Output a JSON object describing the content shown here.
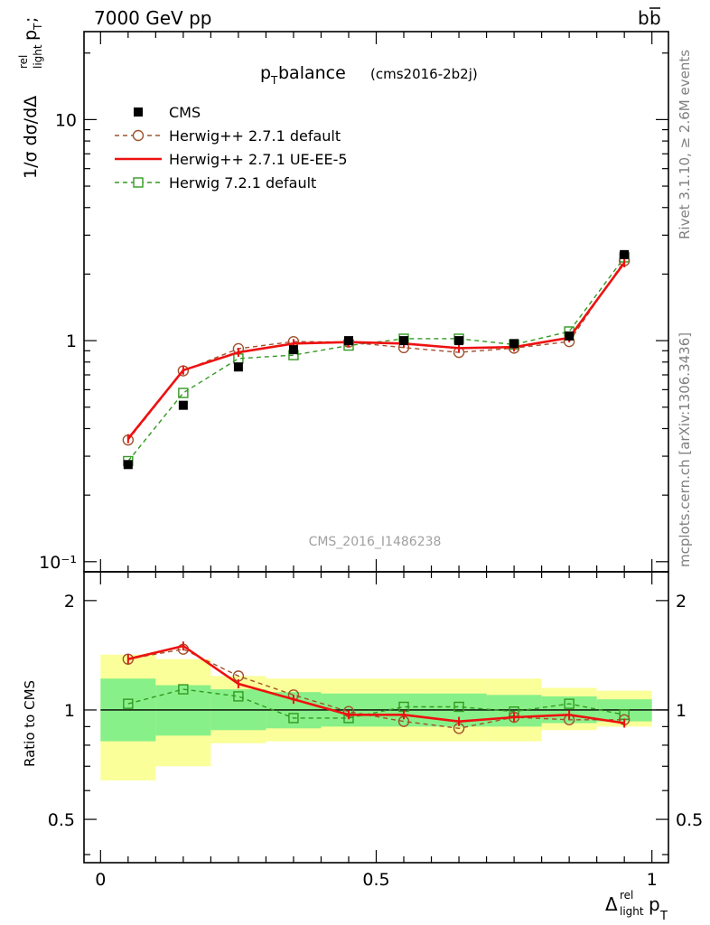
{
  "header": {
    "energy_label": "7000 GeV pp",
    "process_label": "b",
    "process_label_bar": "b"
  },
  "side_labels": {
    "rivet": "Rivet 3.1.10, ≥ 2.6M events",
    "mcplots": "mcplots.cern.ch [arXiv:1306.3436]"
  },
  "plot_title": {
    "main": "p",
    "main_sub": "T",
    "main_rest": " balance",
    "tag": "(cms2016-2b2j)"
  },
  "watermark": "CMS_2016_I1486238",
  "axis_labels": {
    "y_main_parts": [
      "1/σ dσ/dΔ",
      "rel",
      "light",
      "p",
      "T",
      " ;"
    ],
    "y_ratio": "Ratio to CMS",
    "x_parts": [
      "Δ",
      "rel",
      "light",
      "p",
      "T"
    ]
  },
  "colors": {
    "data": "#000000",
    "herwigpp_default": "#a0522d",
    "herwigpp_ueee5": "#ee1111",
    "herwig7_default": "#339922",
    "band_inner": "#88f088",
    "band_outer": "#fbff99"
  },
  "chart_data": {
    "type": "line",
    "x": [
      0.05,
      0.15,
      0.25,
      0.35,
      0.45,
      0.55,
      0.65,
      0.75,
      0.85,
      0.95
    ],
    "bin_edges": [
      0.0,
      0.1,
      0.2,
      0.3,
      0.4,
      0.5,
      0.6,
      0.7,
      0.8,
      0.9,
      1.0
    ],
    "xlim": [
      -0.03,
      1.03
    ],
    "ylim_main": [
      0.09,
      25
    ],
    "yscale_main": "log",
    "main_ticks": [
      {
        "value": 10,
        "label": "10"
      },
      {
        "value": 1,
        "label": "1"
      },
      {
        "value": 0.1,
        "label": "10⁻¹"
      }
    ],
    "ylim_ratio": [
      0.38,
      2.4
    ],
    "yscale_ratio": "log",
    "ratio_ticks": [
      {
        "value": 2,
        "label": "2"
      },
      {
        "value": 1,
        "label": "1"
      },
      {
        "value": 0.5,
        "label": "0.5"
      }
    ],
    "x_ticks": [
      {
        "value": 0,
        "label": "0"
      },
      {
        "value": 0.5,
        "label": "0.5"
      },
      {
        "value": 1,
        "label": "1"
      }
    ],
    "legend_position": "top-left",
    "series": [
      {
        "key": "cms",
        "name": "CMS",
        "style": "data",
        "marker": "square-filled",
        "values": [
          0.275,
          0.51,
          0.76,
          0.91,
          1.0,
          1.0,
          1.0,
          0.97,
          1.05,
          2.45
        ]
      },
      {
        "key": "hpp_def",
        "name": "Herwig++ 2.7.1 default",
        "style": "dashed",
        "marker": "circle-open",
        "values": [
          0.355,
          0.73,
          0.92,
          0.99,
          0.985,
          0.93,
          0.885,
          0.925,
          0.99,
          2.3
        ]
      },
      {
        "key": "hpp_ue",
        "name": "Herwig++ 2.7.1 UE-EE-5",
        "style": "solid",
        "marker": "none",
        "values": [
          0.36,
          0.735,
          0.885,
          0.97,
          0.985,
          0.97,
          0.925,
          0.935,
          1.03,
          2.25
        ]
      },
      {
        "key": "h7_def",
        "name": "Herwig 7.2.1 default",
        "style": "dashed",
        "marker": "square-open",
        "values": [
          0.285,
          0.58,
          0.83,
          0.86,
          0.95,
          1.02,
          1.02,
          0.96,
          1.1,
          2.38
        ]
      }
    ],
    "ratio_series": [
      {
        "key": "hpp_def",
        "values": [
          1.38,
          1.47,
          1.24,
          1.1,
          0.99,
          0.93,
          0.89,
          0.955,
          0.94,
          0.94
        ]
      },
      {
        "key": "hpp_ue",
        "values": [
          1.38,
          1.5,
          1.18,
          1.07,
          0.97,
          0.97,
          0.93,
          0.955,
          0.97,
          0.92
        ]
      },
      {
        "key": "h7_def",
        "values": [
          1.04,
          1.14,
          1.09,
          0.95,
          0.95,
          1.02,
          1.02,
          0.99,
          1.04,
          0.97
        ]
      }
    ],
    "bands": {
      "inner": [
        [
          0.82,
          1.22
        ],
        [
          0.85,
          1.17
        ],
        [
          0.88,
          1.14
        ],
        [
          0.89,
          1.12
        ],
        [
          0.9,
          1.11
        ],
        [
          0.9,
          1.11
        ],
        [
          0.9,
          1.11
        ],
        [
          0.9,
          1.1
        ],
        [
          0.92,
          1.09
        ],
        [
          0.93,
          1.07
        ]
      ],
      "outer": [
        [
          0.64,
          1.42
        ],
        [
          0.7,
          1.38
        ],
        [
          0.81,
          1.24
        ],
        [
          0.82,
          1.22
        ],
        [
          0.82,
          1.22
        ],
        [
          0.82,
          1.22
        ],
        [
          0.82,
          1.22
        ],
        [
          0.82,
          1.22
        ],
        [
          0.88,
          1.15
        ],
        [
          0.9,
          1.13
        ]
      ]
    }
  }
}
